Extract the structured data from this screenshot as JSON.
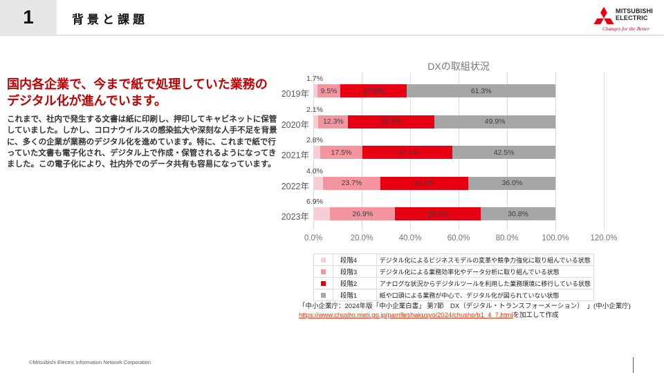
{
  "header": {
    "slide_number": "1",
    "title": "背景と課題",
    "logo": {
      "brand_line1": "MITSUBISHI",
      "brand_line2": "ELECTRIC",
      "tagline": "Changes for the Better"
    }
  },
  "left_panel": {
    "headline": "国内各企業で、今まで紙で処理していた業務のデジタル化が進んでいます。",
    "body": "これまで、社内で発生する文書は紙に印刷し、押印してキャビネットに保管していました。しかし、コロナウイルスの感染拡大や深刻な人手不足を背景に、多くの企業が業務のデジタル化を進めています。特に、これまで紙で行っていた文書も電子化され、デジタル上で作成・保管されるようになってきました。この電子化により、社内外でのデータ共有も容易になっています。"
  },
  "chart_data": {
    "type": "bar",
    "orientation": "horizontal",
    "stacked": true,
    "title": "DXの取組状況",
    "categories": [
      "2019年",
      "2020年",
      "2021年",
      "2022年",
      "2023年"
    ],
    "series": [
      {
        "name": "段階4",
        "color": "#f6ced4",
        "values": [
          1.7,
          2.1,
          2.8,
          4.0,
          6.9
        ]
      },
      {
        "name": "段階3",
        "color": "#f4949f",
        "values": [
          9.5,
          12.3,
          17.5,
          23.7,
          26.9
        ]
      },
      {
        "name": "段階2",
        "color": "#e60012",
        "values": [
          27.5,
          35.7,
          37.2,
          36.4,
          35.4
        ]
      },
      {
        "name": "段階1",
        "color": "#a6a6a6",
        "values": [
          61.3,
          49.9,
          42.5,
          36.0,
          30.8
        ]
      }
    ],
    "x_ticks": [
      "0.0%",
      "20.0%",
      "40.0%",
      "60.0%",
      "80.0%",
      "100.0%",
      "120.0%"
    ],
    "xlim": [
      0,
      120
    ],
    "grid": "vertical",
    "legend_position": "bottom-table",
    "legend": [
      {
        "label": "段階4",
        "desc": "デジタル化によるビジネスモデルの変革や競争力強化に取り組んでいる状態"
      },
      {
        "label": "段階3",
        "desc": "デジタル化による業務効率化やデータ分析に取り組んでいる状態"
      },
      {
        "label": "段階2",
        "desc": "アナログな状況からデジタルツールを利用した業務環境に移行している状態"
      },
      {
        "label": "段階1",
        "desc": "紙や口頭による業務が中心で、デジタル化が図られていない状態"
      }
    ]
  },
  "source": {
    "line1": "「中小企業庁：2024年版「中小企業白書」 第7節　DX（デジタル・トランスフォーメーション）　」(中小企業庁)",
    "link": "https://www.chusho.meti.go.jp/pamflet/hakusyo/2024/chusho/b1_4_7.html",
    "suffix": "を加工して作成"
  },
  "footer": {
    "copyright": "©Mitsubishi Electric Information Network Corporation"
  },
  "colors": {
    "headline_red": "#c00000",
    "mitsubishi_red": "#e60012",
    "gridline": "#d9d9d9",
    "chart_title_gray": "#767676"
  }
}
